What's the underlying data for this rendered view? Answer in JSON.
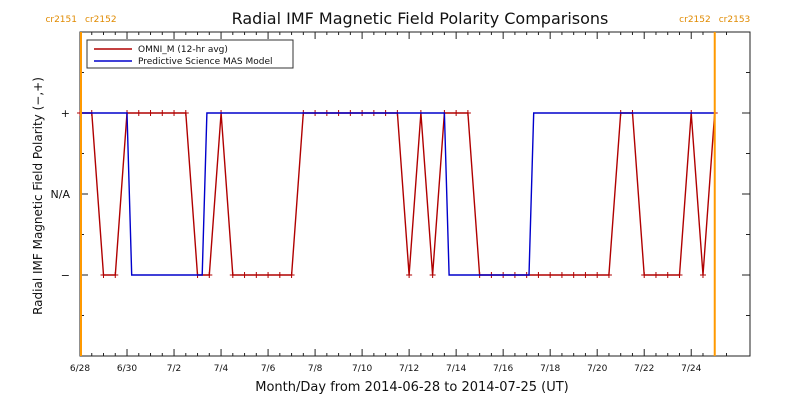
{
  "chart_data": {
    "type": "line",
    "title": "Radial IMF Magnetic Field Polarity Comparisons",
    "xlabel": "Month/Day from 2014-06-28 to 2014-07-25 (UT)",
    "ylabel": "Radial IMF Magnetic Field Polarity (−,+)",
    "xlim": [
      0,
      28.5
    ],
    "ylim": [
      -2,
      2
    ],
    "x_ticks": [
      {
        "x": 0,
        "label": "6/28"
      },
      {
        "x": 2,
        "label": "6/30"
      },
      {
        "x": 4,
        "label": "7/2"
      },
      {
        "x": 6,
        "label": "7/4"
      },
      {
        "x": 8,
        "label": "7/6"
      },
      {
        "x": 10,
        "label": "7/8"
      },
      {
        "x": 12,
        "label": "7/10"
      },
      {
        "x": 14,
        "label": "7/12"
      },
      {
        "x": 16,
        "label": "7/14"
      },
      {
        "x": 18,
        "label": "7/16"
      },
      {
        "x": 20,
        "label": "7/18"
      },
      {
        "x": 22,
        "label": "7/20"
      },
      {
        "x": 24,
        "label": "7/22"
      },
      {
        "x": 26,
        "label": "7/24"
      }
    ],
    "y_ticks": [
      {
        "y": 1,
        "label": "+"
      },
      {
        "y": 0,
        "label": "N/A"
      },
      {
        "y": -1,
        "label": "−"
      }
    ],
    "carrington_markers": [
      {
        "x": 0,
        "left_label": "cr2151",
        "right_label": "cr2152"
      },
      {
        "x": 27.0,
        "left_label": "cr2152",
        "right_label": "cr2153"
      }
    ],
    "legend": {
      "placement": "top-left"
    },
    "series": [
      {
        "name": "OMNI_M (12-hr avg)",
        "color": "#b00000",
        "markers": true,
        "x": [
          0.0,
          0.5,
          1.0,
          1.5,
          2.0,
          2.5,
          3.0,
          3.5,
          4.0,
          4.5,
          5.0,
          5.5,
          6.0,
          6.5,
          7.0,
          7.5,
          8.0,
          8.5,
          9.0,
          9.5,
          10.0,
          10.5,
          11.0,
          11.5,
          12.0,
          12.5,
          13.0,
          13.5,
          14.0,
          14.5,
          15.0,
          15.5,
          16.0,
          16.5,
          17.0,
          17.5,
          18.0,
          18.5,
          19.0,
          19.5,
          20.0,
          20.5,
          21.0,
          21.5,
          22.0,
          22.5,
          23.0,
          23.5,
          24.0,
          24.5,
          25.0,
          25.5,
          26.0,
          26.5,
          27.0
        ],
        "y": [
          1,
          1,
          -1,
          -1,
          1,
          1,
          1,
          1,
          1,
          1,
          -1,
          -1,
          1,
          -1,
          -1,
          -1,
          -1,
          -1,
          -1,
          1,
          1,
          1,
          1,
          1,
          1,
          1,
          1,
          1,
          -1,
          1,
          -1,
          1,
          1,
          1,
          -1,
          -1,
          -1,
          -1,
          -1,
          -1,
          -1,
          -1,
          -1,
          -1,
          -1,
          -1,
          1,
          1,
          -1,
          -1,
          -1,
          -1,
          1,
          -1,
          1
        ]
      },
      {
        "name": "Predictive Science MAS Model",
        "color": "#0000cc",
        "markers": false,
        "x": [
          0.0,
          2.0,
          2.2,
          5.2,
          5.4,
          15.5,
          15.7,
          19.1,
          19.3,
          27.0
        ],
        "y": [
          1,
          1,
          -1,
          -1,
          1,
          1,
          -1,
          -1,
          1,
          1
        ]
      }
    ]
  }
}
